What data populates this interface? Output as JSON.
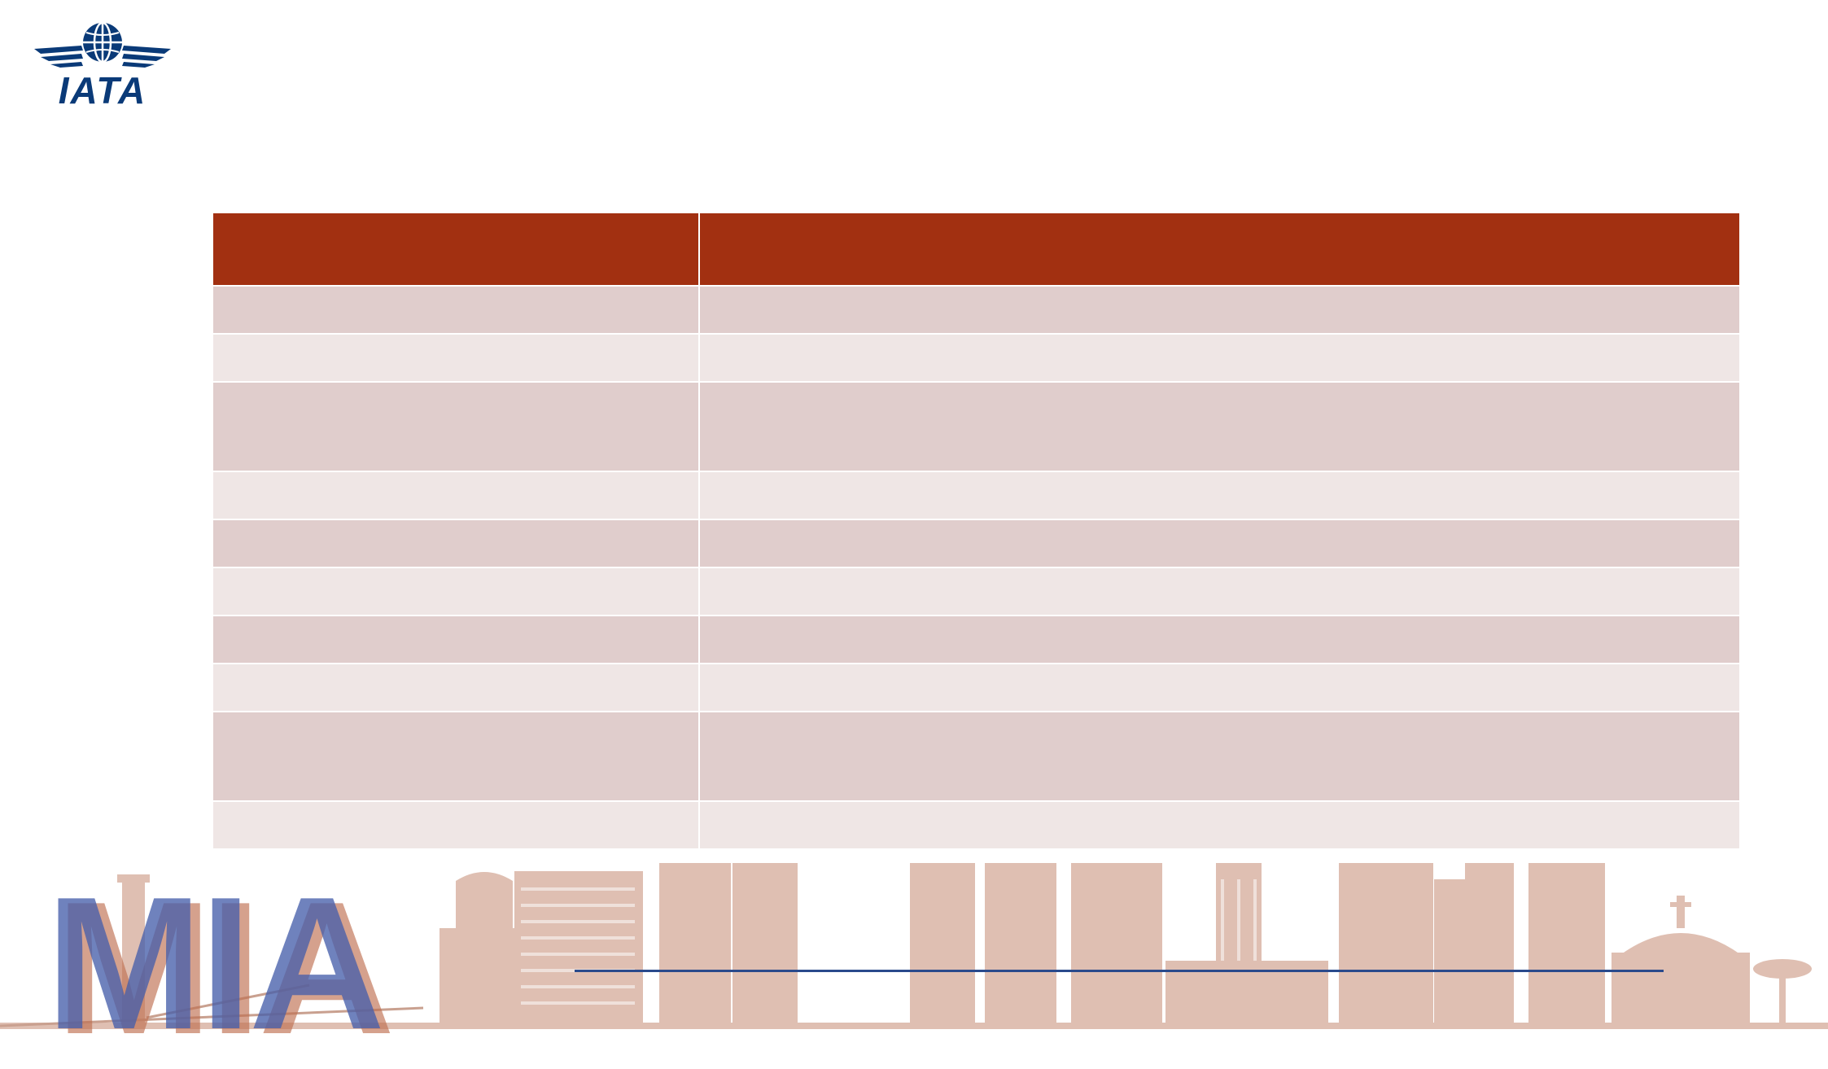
{
  "logo": {
    "text": "IATA",
    "color": "#0a3a78"
  },
  "table": {
    "header_color": "#a23011",
    "row_color_odd": "#e0cdcc",
    "row_color_even": "#efe6e5",
    "headers": [
      "",
      ""
    ],
    "rows": [
      [
        "",
        ""
      ],
      [
        "",
        ""
      ],
      [
        "",
        ""
      ],
      [
        "",
        ""
      ],
      [
        "",
        ""
      ],
      [
        "",
        ""
      ],
      [
        "",
        ""
      ],
      [
        "",
        ""
      ],
      [
        "",
        ""
      ],
      [
        "",
        ""
      ]
    ]
  },
  "footer": {
    "mia_text": "MIA",
    "line_color": "#2a4a8c"
  }
}
